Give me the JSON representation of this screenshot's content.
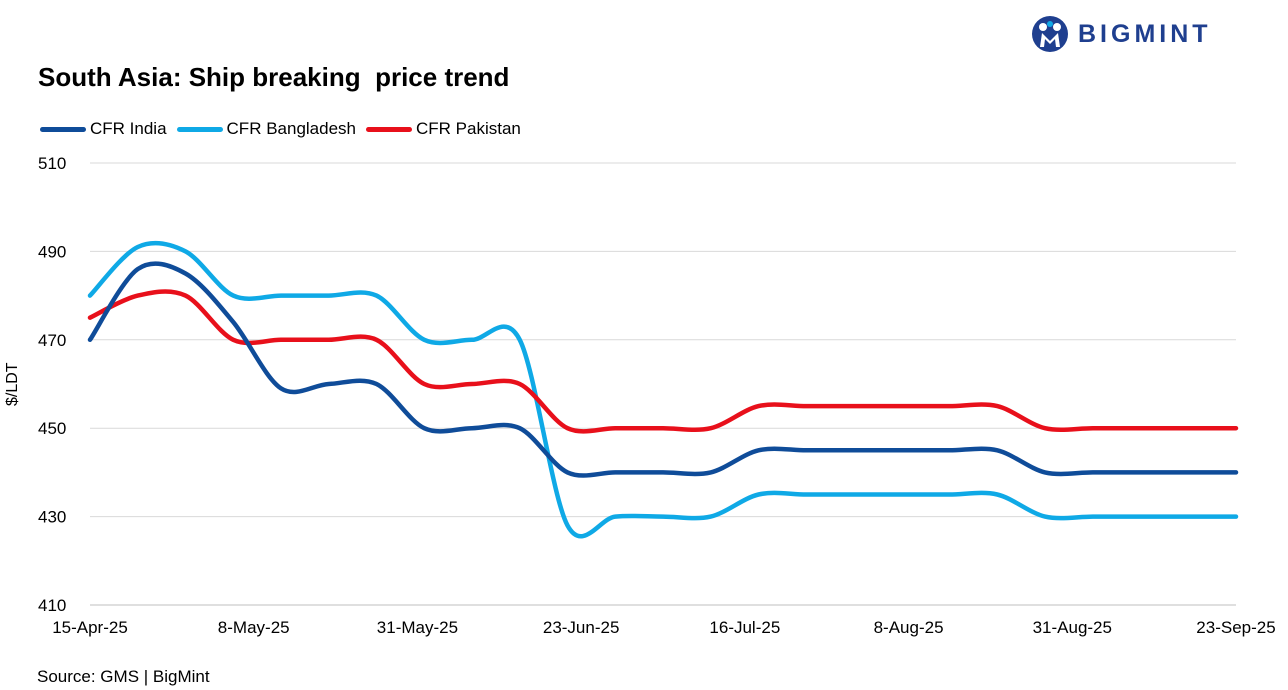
{
  "brand": {
    "name": "BIGMINT",
    "color": "#1f3f8f"
  },
  "source": "Source: GMS | BigMint",
  "chart_data": {
    "type": "line",
    "title": "South Asia: Ship breaking  price trend",
    "xlabel": "",
    "ylabel": "$/LDT",
    "ylim": [
      410,
      510
    ],
    "yticks": [
      410,
      430,
      450,
      470,
      490,
      510
    ],
    "x": [
      "15-Apr-25",
      "22-Apr-25",
      "29-Apr-25",
      "8-May-25",
      "13-May-25",
      "20-May-25",
      "27-May-25",
      "31-May-25",
      "3-Jun-25",
      "10-Jun-25",
      "17-Jun-25",
      "23-Jun-25",
      "1-Jul-25",
      "8-Jul-25",
      "16-Jul-25",
      "22-Jul-25",
      "29-Jul-25",
      "5-Aug-25",
      "8-Aug-25",
      "19-Aug-25",
      "26-Aug-25",
      "31-Aug-25",
      "9-Sep-25",
      "16-Sep-25",
      "23-Sep-25"
    ],
    "xtick_labels": [
      "15-Apr-25",
      "8-May-25",
      "31-May-25",
      "23-Jun-25",
      "16-Jul-25",
      "8-Aug-25",
      "31-Aug-25",
      "23-Sep-25"
    ],
    "grid": true,
    "legend_position": "top-left",
    "series": [
      {
        "name": "CFR India",
        "color": "#0f4c99",
        "values": [
          470,
          486,
          485,
          474,
          459,
          460,
          460,
          450,
          450,
          450,
          440,
          440,
          440,
          440,
          445,
          445,
          445,
          445,
          445,
          445,
          440,
          440,
          440,
          440,
          440
        ]
      },
      {
        "name": "CFR Bangladesh",
        "color": "#0fa9e6",
        "values": [
          480,
          491,
          490,
          480,
          480,
          480,
          480,
          470,
          470,
          470,
          428,
          430,
          430,
          430,
          435,
          435,
          435,
          435,
          435,
          435,
          430,
          430,
          430,
          430,
          430
        ]
      },
      {
        "name": "CFR Pakistan",
        "color": "#e8101b",
        "values": [
          475,
          480,
          480,
          470,
          470,
          470,
          470,
          460,
          460,
          460,
          450,
          450,
          450,
          450,
          455,
          455,
          455,
          455,
          455,
          455,
          450,
          450,
          450,
          450,
          450
        ]
      }
    ]
  }
}
